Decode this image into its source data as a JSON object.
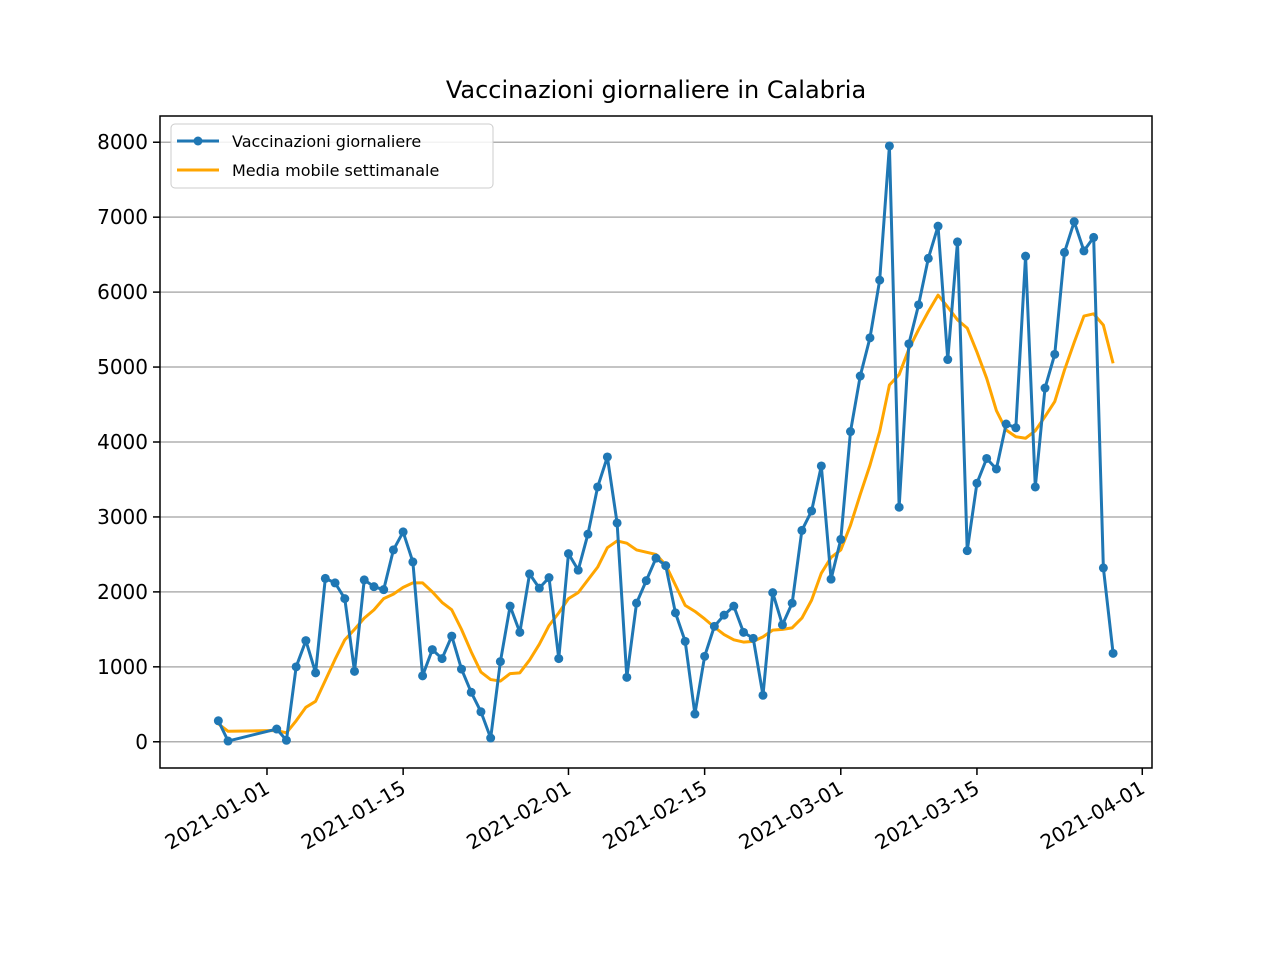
{
  "chart_data": {
    "type": "line",
    "title": "Vaccinazioni giornaliere in Calabria",
    "xlabel": "",
    "ylabel": "",
    "x_ticks": [
      "2021-01-01",
      "2021-01-15",
      "2021-02-01",
      "2021-02-15",
      "2021-03-01",
      "2021-03-15",
      "2021-04-01"
    ],
    "y_ticks": [
      "0",
      "1000",
      "2000",
      "3000",
      "4000",
      "5000",
      "6000",
      "7000",
      "8000"
    ],
    "ylim": [
      -350,
      8350
    ],
    "xlim": [
      "2020-12-21",
      "2021-04-02"
    ],
    "grid": "y",
    "legend_position": "upper left",
    "series": [
      {
        "name": "Vaccinazioni giornaliere",
        "color": "#1f77b4",
        "marker": "circle",
        "points": [
          [
            "2020-12-27",
            280
          ],
          [
            "2020-12-28",
            10
          ],
          [
            "2021-01-02",
            170
          ],
          [
            "2021-01-03",
            20
          ],
          [
            "2021-01-04",
            1000
          ],
          [
            "2021-01-05",
            1350
          ],
          [
            "2021-01-06",
            920
          ],
          [
            "2021-01-07",
            2180
          ],
          [
            "2021-01-08",
            2120
          ],
          [
            "2021-01-09",
            1910
          ],
          [
            "2021-01-10",
            940
          ],
          [
            "2021-01-11",
            2160
          ],
          [
            "2021-01-12",
            2070
          ],
          [
            "2021-01-13",
            2030
          ],
          [
            "2021-01-14",
            2560
          ],
          [
            "2021-01-15",
            2800
          ],
          [
            "2021-01-16",
            2400
          ],
          [
            "2021-01-17",
            880
          ],
          [
            "2021-01-18",
            1230
          ],
          [
            "2021-01-19",
            1110
          ],
          [
            "2021-01-20",
            1410
          ],
          [
            "2021-01-21",
            970
          ],
          [
            "2021-01-22",
            660
          ],
          [
            "2021-01-23",
            400
          ],
          [
            "2021-01-24",
            50
          ],
          [
            "2021-01-25",
            1070
          ],
          [
            "2021-01-26",
            1810
          ],
          [
            "2021-01-27",
            1460
          ],
          [
            "2021-01-28",
            2240
          ],
          [
            "2021-01-29",
            2050
          ],
          [
            "2021-01-30",
            2190
          ],
          [
            "2021-01-31",
            1110
          ],
          [
            "2021-02-01",
            2510
          ],
          [
            "2021-02-02",
            2290
          ],
          [
            "2021-02-03",
            2770
          ],
          [
            "2021-02-04",
            3400
          ],
          [
            "2021-02-05",
            3800
          ],
          [
            "2021-02-06",
            2920
          ],
          [
            "2021-02-07",
            860
          ],
          [
            "2021-02-08",
            1850
          ],
          [
            "2021-02-09",
            2150
          ],
          [
            "2021-02-10",
            2450
          ],
          [
            "2021-02-11",
            2350
          ],
          [
            "2021-02-12",
            1720
          ],
          [
            "2021-02-13",
            1340
          ],
          [
            "2021-02-14",
            370
          ],
          [
            "2021-02-15",
            1140
          ],
          [
            "2021-02-16",
            1540
          ],
          [
            "2021-02-17",
            1690
          ],
          [
            "2021-02-18",
            1810
          ],
          [
            "2021-02-19",
            1460
          ],
          [
            "2021-02-20",
            1380
          ],
          [
            "2021-02-21",
            620
          ],
          [
            "2021-02-22",
            1990
          ],
          [
            "2021-02-23",
            1560
          ],
          [
            "2021-02-24",
            1850
          ],
          [
            "2021-02-25",
            2820
          ],
          [
            "2021-02-26",
            3080
          ],
          [
            "2021-02-27",
            3680
          ],
          [
            "2021-02-28",
            2170
          ],
          [
            "2021-03-01",
            2700
          ],
          [
            "2021-03-02",
            4140
          ],
          [
            "2021-03-03",
            4880
          ],
          [
            "2021-03-04",
            5390
          ],
          [
            "2021-03-05",
            6160
          ],
          [
            "2021-03-06",
            7950
          ],
          [
            "2021-03-07",
            3130
          ],
          [
            "2021-03-08",
            5310
          ],
          [
            "2021-03-09",
            5830
          ],
          [
            "2021-03-10",
            6450
          ],
          [
            "2021-03-11",
            6880
          ],
          [
            "2021-03-12",
            5100
          ],
          [
            "2021-03-13",
            6670
          ],
          [
            "2021-03-14",
            2550
          ],
          [
            "2021-03-15",
            3450
          ],
          [
            "2021-03-16",
            3780
          ],
          [
            "2021-03-17",
            3640
          ],
          [
            "2021-03-18",
            4240
          ],
          [
            "2021-03-19",
            4190
          ],
          [
            "2021-03-20",
            6480
          ],
          [
            "2021-03-21",
            3400
          ],
          [
            "2021-03-22",
            4720
          ],
          [
            "2021-03-23",
            5170
          ],
          [
            "2021-03-24",
            6530
          ],
          [
            "2021-03-25",
            6940
          ],
          [
            "2021-03-26",
            6550
          ],
          [
            "2021-03-27",
            6730
          ],
          [
            "2021-03-28",
            2320
          ],
          [
            "2021-03-29",
            1180
          ]
        ]
      },
      {
        "name": "Media mobile settimanale",
        "color": "#ffa500",
        "marker": "none",
        "points": [
          [
            "2020-12-27",
            240
          ],
          [
            "2020-12-28",
            140
          ],
          [
            "2021-01-02",
            150
          ],
          [
            "2021-01-03",
            120
          ],
          [
            "2021-01-04",
            280
          ],
          [
            "2021-01-05",
            460
          ],
          [
            "2021-01-06",
            540
          ],
          [
            "2021-01-07",
            820
          ],
          [
            "2021-01-08",
            1100
          ],
          [
            "2021-01-09",
            1360
          ],
          [
            "2021-01-10",
            1500
          ],
          [
            "2021-01-11",
            1650
          ],
          [
            "2021-01-12",
            1760
          ],
          [
            "2021-01-13",
            1910
          ],
          [
            "2021-01-14",
            1970
          ],
          [
            "2021-01-15",
            2060
          ],
          [
            "2021-01-16",
            2120
          ],
          [
            "2021-01-17",
            2120
          ],
          [
            "2021-01-18",
            2000
          ],
          [
            "2021-01-19",
            1860
          ],
          [
            "2021-01-20",
            1760
          ],
          [
            "2021-01-21",
            1500
          ],
          [
            "2021-01-22",
            1200
          ],
          [
            "2021-01-23",
            930
          ],
          [
            "2021-01-24",
            830
          ],
          [
            "2021-01-25",
            810
          ],
          [
            "2021-01-26",
            910
          ],
          [
            "2021-01-27",
            920
          ],
          [
            "2021-01-28",
            1090
          ],
          [
            "2021-01-29",
            1300
          ],
          [
            "2021-01-30",
            1550
          ],
          [
            "2021-01-31",
            1720
          ],
          [
            "2021-02-01",
            1910
          ],
          [
            "2021-02-02",
            1990
          ],
          [
            "2021-02-03",
            2160
          ],
          [
            "2021-02-04",
            2330
          ],
          [
            "2021-02-05",
            2590
          ],
          [
            "2021-02-06",
            2680
          ],
          [
            "2021-02-07",
            2650
          ],
          [
            "2021-02-08",
            2560
          ],
          [
            "2021-02-09",
            2530
          ],
          [
            "2021-02-10",
            2500
          ],
          [
            "2021-02-11",
            2360
          ],
          [
            "2021-02-12",
            2090
          ],
          [
            "2021-02-13",
            1820
          ],
          [
            "2021-02-14",
            1740
          ],
          [
            "2021-02-15",
            1640
          ],
          [
            "2021-02-16",
            1530
          ],
          [
            "2021-02-17",
            1430
          ],
          [
            "2021-02-18",
            1360
          ],
          [
            "2021-02-19",
            1330
          ],
          [
            "2021-02-20",
            1340
          ],
          [
            "2021-02-21",
            1400
          ],
          [
            "2021-02-22",
            1490
          ],
          [
            "2021-02-23",
            1500
          ],
          [
            "2021-02-24",
            1520
          ],
          [
            "2021-02-25",
            1650
          ],
          [
            "2021-02-26",
            1890
          ],
          [
            "2021-02-27",
            2250
          ],
          [
            "2021-02-28",
            2460
          ],
          [
            "2021-03-01",
            2560
          ],
          [
            "2021-03-02",
            2890
          ],
          [
            "2021-03-03",
            3300
          ],
          [
            "2021-03-04",
            3690
          ],
          [
            "2021-03-05",
            4140
          ],
          [
            "2021-03-06",
            4760
          ],
          [
            "2021-03-07",
            4900
          ],
          [
            "2021-03-08",
            5240
          ],
          [
            "2021-03-09",
            5500
          ],
          [
            "2021-03-10",
            5740
          ],
          [
            "2021-03-11",
            5960
          ],
          [
            "2021-03-12",
            5800
          ],
          [
            "2021-03-13",
            5630
          ],
          [
            "2021-03-14",
            5520
          ],
          [
            "2021-03-15",
            5200
          ],
          [
            "2021-03-16",
            4850
          ],
          [
            "2021-03-17",
            4420
          ],
          [
            "2021-03-18",
            4160
          ],
          [
            "2021-03-19",
            4070
          ],
          [
            "2021-03-20",
            4050
          ],
          [
            "2021-03-21",
            4150
          ],
          [
            "2021-03-22",
            4340
          ],
          [
            "2021-03-23",
            4540
          ],
          [
            "2021-03-24",
            4960
          ],
          [
            "2021-03-25",
            5330
          ],
          [
            "2021-03-26",
            5680
          ],
          [
            "2021-03-27",
            5710
          ],
          [
            "2021-03-28",
            5560
          ],
          [
            "2021-03-29",
            5050
          ]
        ]
      }
    ]
  }
}
